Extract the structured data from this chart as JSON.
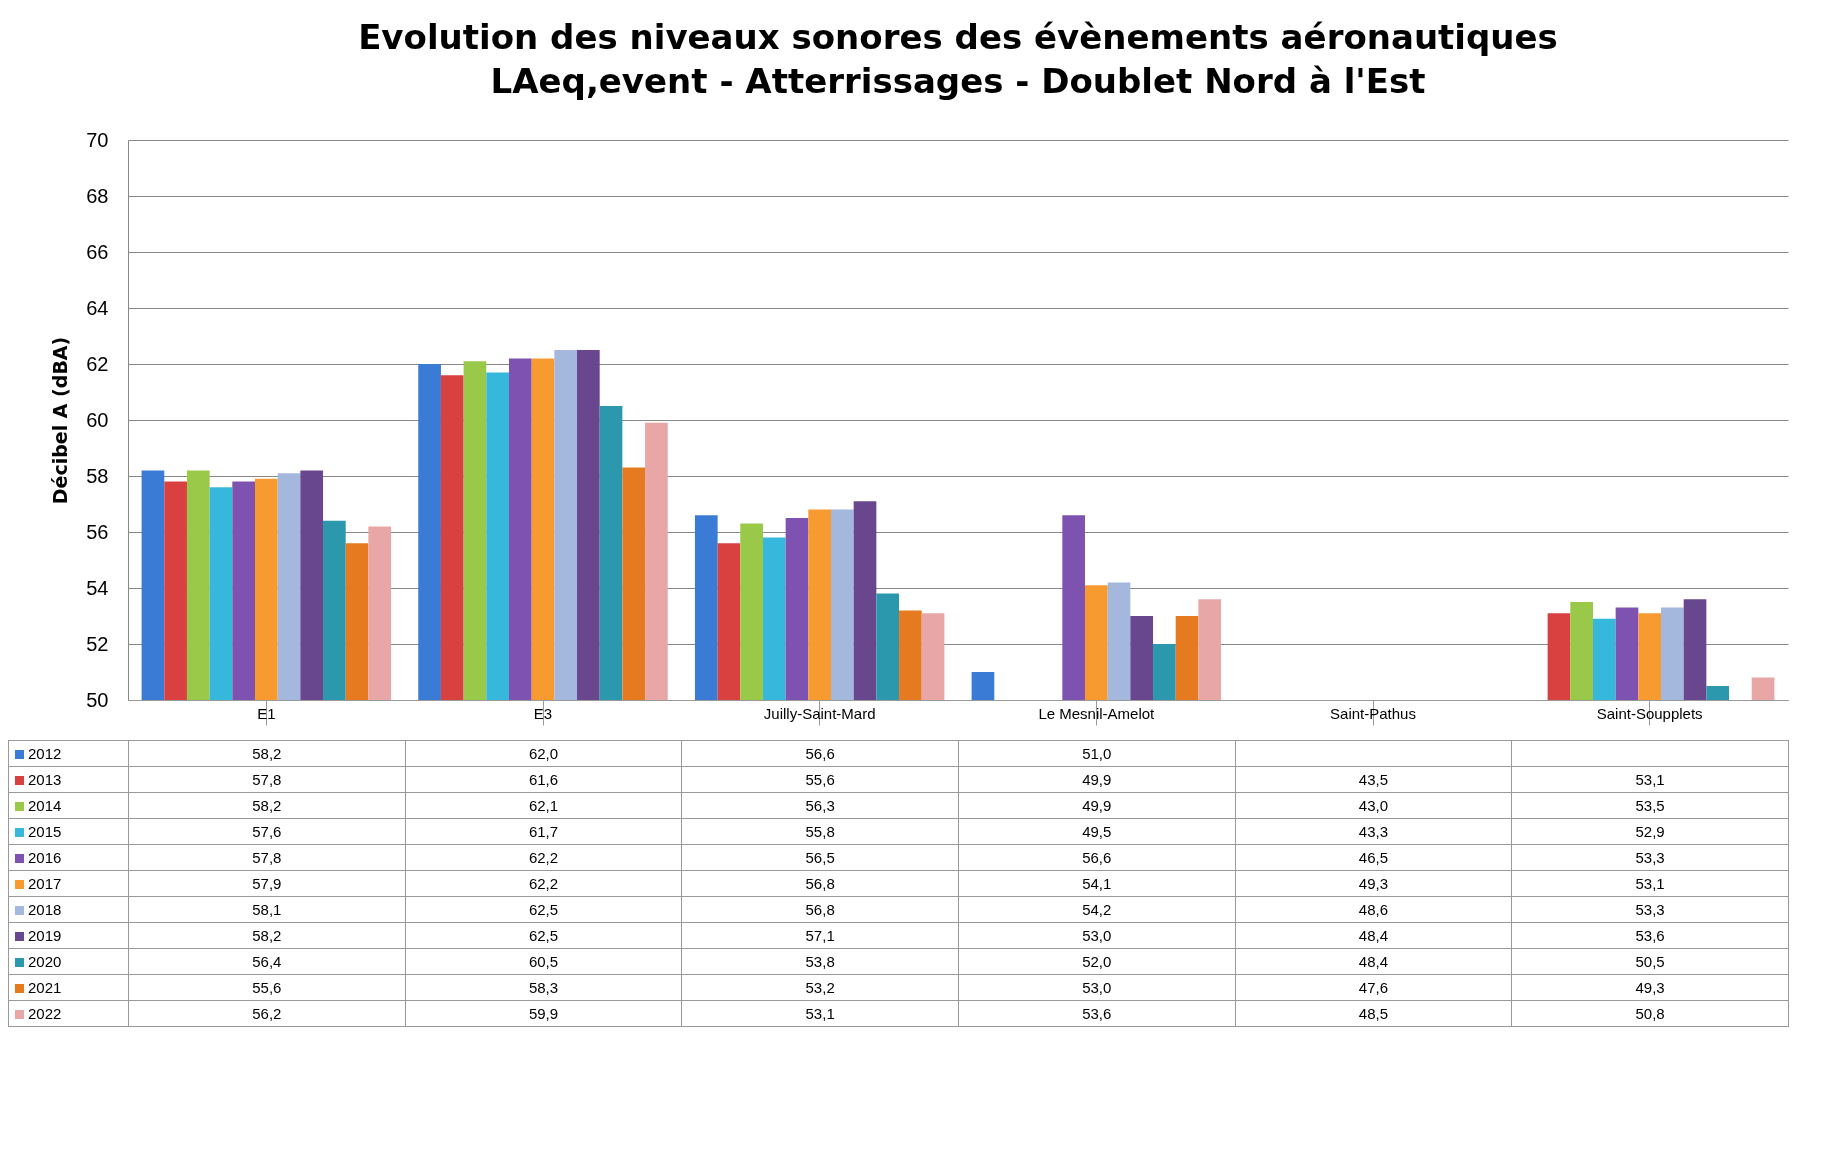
{
  "chart_data": {
    "type": "bar",
    "title": "Evolution des niveaux sonores des évènements aéronautiques",
    "subtitle": "LAeq,event - Atterrissages - Doublet Nord à l'Est",
    "ylabel": "Décibel A (dBA)",
    "categories": [
      "E1",
      "E3",
      "Juilly-Saint-Mard",
      "Le Mesnil-Amelot",
      "Saint-Pathus",
      "Saint-Soupplets"
    ],
    "series": [
      {
        "name": "2012",
        "color": "#3a7bd5",
        "values": [
          58.2,
          62.0,
          56.6,
          51.0,
          null,
          null
        ],
        "value_labels": [
          "58,2",
          "62,0",
          "56,6",
          "51,0",
          null,
          null
        ]
      },
      {
        "name": "2013",
        "color": "#d94040",
        "values": [
          57.8,
          61.6,
          55.6,
          null,
          null,
          53.1
        ],
        "value_labels": [
          "57,8",
          "61,6",
          "55,6",
          "49,9",
          "43,5",
          "53,1"
        ]
      },
      {
        "name": "2014",
        "color": "#9ac848",
        "values": [
          58.2,
          62.1,
          56.3,
          null,
          null,
          53.5
        ],
        "value_labels": [
          "58,2",
          "62,1",
          "56,3",
          "49,9",
          "43,0",
          "53,5"
        ]
      },
      {
        "name": "2015",
        "color": "#36b8dc",
        "values": [
          57.6,
          61.7,
          55.8,
          null,
          null,
          52.9
        ],
        "value_labels": [
          "57,6",
          "61,7",
          "55,8",
          "49,5",
          "43,3",
          "52,9"
        ]
      },
      {
        "name": "2016",
        "color": "#7e52b0",
        "values": [
          57.8,
          62.2,
          56.5,
          56.6,
          null,
          53.3
        ],
        "value_labels": [
          "57,8",
          "62,2",
          "56,5",
          "56,6",
          "46,5",
          "53,3"
        ]
      },
      {
        "name": "2017",
        "color": "#f79a30",
        "values": [
          57.9,
          62.2,
          56.8,
          54.1,
          null,
          53.1
        ],
        "value_labels": [
          "57,9",
          "62,2",
          "56,8",
          "54,1",
          "49,3",
          "53,1"
        ]
      },
      {
        "name": "2018",
        "color": "#a4b8de",
        "values": [
          58.1,
          62.5,
          56.8,
          54.2,
          null,
          53.3
        ],
        "value_labels": [
          "58,1",
          "62,5",
          "56,8",
          "54,2",
          "48,6",
          "53,3"
        ]
      },
      {
        "name": "2019",
        "color": "#68478f",
        "values": [
          58.2,
          62.5,
          57.1,
          53.0,
          null,
          53.6
        ],
        "value_labels": [
          "58,2",
          "62,5",
          "57,1",
          "53,0",
          "48,4",
          "53,6"
        ]
      },
      {
        "name": "2020",
        "color": "#2b98ae",
        "values": [
          56.4,
          60.5,
          53.8,
          52.0,
          null,
          50.5
        ],
        "value_labels": [
          "56,4",
          "60,5",
          "53,8",
          "52,0",
          "48,4",
          "50,5"
        ]
      },
      {
        "name": "2021",
        "color": "#e57a20",
        "values": [
          55.6,
          58.3,
          53.2,
          53.0,
          null,
          null
        ],
        "value_labels": [
          "55,6",
          "58,3",
          "53,2",
          "53,0",
          "47,6",
          "49,3"
        ]
      },
      {
        "name": "2022",
        "color": "#e8a6a6",
        "values": [
          56.2,
          59.9,
          53.1,
          53.6,
          null,
          50.8
        ],
        "value_labels": [
          "56,2",
          "59,9",
          "53,1",
          "53,6",
          "48,5",
          "50,8"
        ]
      }
    ],
    "ylim": [
      50,
      70
    ],
    "yticks": [
      50,
      52,
      54,
      56,
      58,
      60,
      62,
      64,
      66,
      68,
      70
    ],
    "grid": "y",
    "legend": "bottom"
  }
}
